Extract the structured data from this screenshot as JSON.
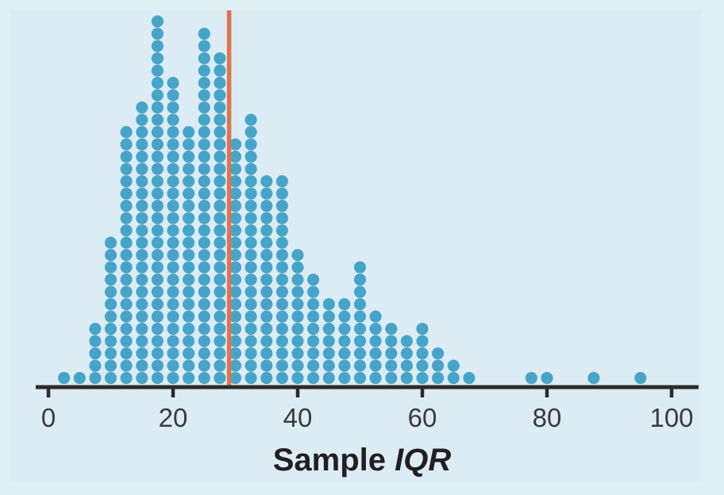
{
  "figure": {
    "background_color": "#dff0f4",
    "panel_color": "#dcecf4"
  },
  "chart_data": {
    "type": "dotplot",
    "title": "",
    "xlabel": "Sample IQR",
    "xlabel_regular": "Sample ",
    "xlabel_italic": "IQR",
    "x_tick_labels": [
      "0",
      "20",
      "40",
      "60",
      "80",
      "100"
    ],
    "x_tick_values": [
      0,
      20,
      40,
      60,
      80,
      100
    ],
    "axis_range": [
      0,
      100
    ],
    "grid": "off",
    "dot_color": "#47a4c9",
    "axis_color": "#2d2a26",
    "tick_label_color": "#3b3a39",
    "title_color": "#231f20",
    "observed_line": {
      "value": 29,
      "color": "#e0744e"
    },
    "total_dots": 345,
    "columns": [
      {
        "x": 2.5,
        "count": 1
      },
      {
        "x": 5,
        "count": 1
      },
      {
        "x": 7.5,
        "count": 5
      },
      {
        "x": 10,
        "count": 12
      },
      {
        "x": 12.5,
        "count": 21
      },
      {
        "x": 15,
        "count": 23
      },
      {
        "x": 17.5,
        "count": 30
      },
      {
        "x": 20,
        "count": 25
      },
      {
        "x": 22.5,
        "count": 21
      },
      {
        "x": 25,
        "count": 29
      },
      {
        "x": 27.5,
        "count": 27
      },
      {
        "x": 30,
        "count": 20
      },
      {
        "x": 32.5,
        "count": 22
      },
      {
        "x": 35,
        "count": 17
      },
      {
        "x": 37.5,
        "count": 17
      },
      {
        "x": 40,
        "count": 11
      },
      {
        "x": 42.5,
        "count": 9
      },
      {
        "x": 45,
        "count": 7
      },
      {
        "x": 47.5,
        "count": 7
      },
      {
        "x": 50,
        "count": 10
      },
      {
        "x": 52.5,
        "count": 6
      },
      {
        "x": 55,
        "count": 5
      },
      {
        "x": 57.5,
        "count": 4
      },
      {
        "x": 60,
        "count": 5
      },
      {
        "x": 62.5,
        "count": 3
      },
      {
        "x": 65,
        "count": 2
      },
      {
        "x": 67.5,
        "count": 1
      },
      {
        "x": 77.5,
        "count": 1
      },
      {
        "x": 80,
        "count": 1
      },
      {
        "x": 87.5,
        "count": 1
      },
      {
        "x": 95,
        "count": 1
      }
    ]
  }
}
